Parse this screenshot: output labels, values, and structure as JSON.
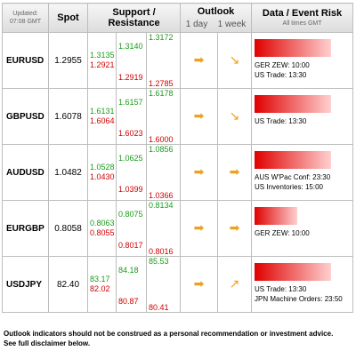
{
  "header": {
    "updated_label": "Updated:",
    "updated_time": "07:08 GMT",
    "spot": "Spot",
    "sr": "Support / Resistance",
    "outlook": "Outlook",
    "outlook_1day": "1 day",
    "outlook_1week": "1 week",
    "events": "Data / Event Risk",
    "events_sub": "All times GMT"
  },
  "rows": [
    {
      "pair": "EURUSD",
      "spot": "1.2955",
      "s1": "1.3135",
      "s1b": "1.2921",
      "s2": "1.3140",
      "s2b": "1.2919",
      "s3": "1.3172",
      "s3b": "1.2785",
      "day_arrow": "arrow-right-icon",
      "week_arrow": "arrow-down-right-icon",
      "risk_level": 0.9,
      "events": [
        "GER ZEW: 10:00",
        "US Trade: 13:30"
      ]
    },
    {
      "pair": "GBPUSD",
      "spot": "1.6078",
      "s1": "1.6131",
      "s1b": "1.6064",
      "s2": "1.6157",
      "s2b": "1.6023",
      "s3": "1.6178",
      "s3b": "1.6000",
      "day_arrow": "arrow-right-icon",
      "week_arrow": "arrow-down-right-icon",
      "risk_level": 0.9,
      "events": [
        "US Trade: 13:30"
      ]
    },
    {
      "pair": "AUDUSD",
      "spot": "1.0482",
      "s1": "1.0528",
      "s1b": "1.0430",
      "s2": "1.0625",
      "s2b": "1.0399",
      "s3": "1.0856",
      "s3b": "1.0366",
      "day_arrow": "arrow-right-icon",
      "week_arrow": "arrow-right-icon",
      "risk_level": 0.9,
      "events": [
        "AUS W'Pac Conf: 23:30",
        "US Inventories: 15:00"
      ]
    },
    {
      "pair": "EURGBP",
      "spot": "0.8058",
      "s1": "0.8063",
      "s1b": "0.8055",
      "s2": "0.8075",
      "s2b": "0.8017",
      "s3": "0.8134",
      "s3b": "0.8016",
      "day_arrow": "arrow-right-icon",
      "week_arrow": "arrow-right-icon",
      "risk_level": 0.5,
      "events": [
        "GER ZEW: 10:00"
      ]
    },
    {
      "pair": "USDJPY",
      "spot": "82.40",
      "s1": "83.17",
      "s1b": "82.02",
      "s2": "84.18",
      "s2b": "80.87",
      "s3": "85.53",
      "s3b": "80.41",
      "day_arrow": "arrow-right-icon",
      "week_arrow": "arrow-up-right-icon",
      "risk_level": 0.9,
      "events": [
        "US Trade: 13:30",
        "JPN Machine Orders: 23:50"
      ]
    }
  ],
  "disclaimer_1": "Outlook indicators should not be construed as a personal recommendation or investment advice.",
  "disclaimer_2": "See full disclaimer below."
}
